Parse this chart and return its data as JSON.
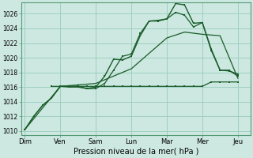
{
  "background_color": "#cce8e0",
  "grid_color": "#99ccbb",
  "line_color": "#1a5c2a",
  "x_labels": [
    "Dim",
    "Ven",
    "Sam",
    "Lun",
    "Mar",
    "Mer",
    "Jeu"
  ],
  "x_ticks": [
    0,
    1,
    2,
    3,
    4,
    5,
    6
  ],
  "xlabel": "Pression niveau de la mer( hPa )",
  "ylim": [
    1009.5,
    1027.5
  ],
  "yticks": [
    1010,
    1012,
    1014,
    1016,
    1018,
    1020,
    1022,
    1024,
    1026
  ],
  "line1_main": {
    "x": [
      0.0,
      0.25,
      0.5,
      0.75,
      1.0,
      1.25,
      1.5,
      1.75,
      2.0,
      2.25,
      2.5,
      2.75,
      3.0,
      3.25,
      3.5,
      3.75,
      4.0,
      4.25,
      4.5,
      4.75,
      5.0,
      5.25,
      5.5,
      5.75,
      6.0
    ],
    "y": [
      1010.2,
      1012.0,
      1013.5,
      1014.5,
      1016.1,
      1016.1,
      1016.1,
      1015.8,
      1016.0,
      1017.5,
      1019.8,
      1019.7,
      1020.2,
      1023.0,
      1025.0,
      1025.1,
      1025.3,
      1027.4,
      1027.2,
      1024.7,
      1024.8,
      1021.2,
      1018.3,
      1018.3,
      1017.5
    ]
  },
  "line2_second": {
    "x": [
      0.0,
      0.25,
      0.5,
      0.75,
      1.0,
      1.25,
      1.5,
      1.75,
      2.0,
      2.25,
      2.5,
      2.75,
      3.0,
      3.25,
      3.5,
      3.75,
      4.0,
      4.25,
      4.5,
      4.75,
      5.0,
      5.25,
      5.5,
      5.75,
      6.0
    ],
    "y": [
      1010.2,
      1012.0,
      1013.5,
      1014.5,
      1016.1,
      1016.0,
      1016.0,
      1015.8,
      1015.8,
      1016.5,
      1018.3,
      1020.2,
      1020.5,
      1023.3,
      1025.0,
      1025.0,
      1025.3,
      1026.2,
      1025.8,
      1024.2,
      1024.8,
      1021.0,
      1018.3,
      1018.2,
      1017.8
    ]
  },
  "line3_diagonal": {
    "x": [
      0.0,
      1.0,
      2.0,
      3.0,
      4.0,
      4.5,
      5.0,
      5.5,
      6.0
    ],
    "y": [
      1010.2,
      1016.1,
      1016.5,
      1018.5,
      1022.7,
      1023.5,
      1023.2,
      1023.0,
      1017.2
    ]
  },
  "line4_flat": {
    "x": [
      0.75,
      1.0,
      1.25,
      1.5,
      1.75,
      2.0,
      2.25,
      2.5,
      2.75,
      3.0,
      3.25,
      3.5,
      3.75,
      4.0,
      4.25,
      4.5,
      4.75,
      5.0,
      5.25,
      5.5,
      5.75,
      6.0
    ],
    "y": [
      1016.1,
      1016.1,
      1016.1,
      1016.1,
      1016.1,
      1016.1,
      1016.1,
      1016.1,
      1016.1,
      1016.1,
      1016.1,
      1016.1,
      1016.1,
      1016.1,
      1016.1,
      1016.1,
      1016.1,
      1016.1,
      1016.7,
      1016.7,
      1016.7,
      1016.7
    ]
  }
}
